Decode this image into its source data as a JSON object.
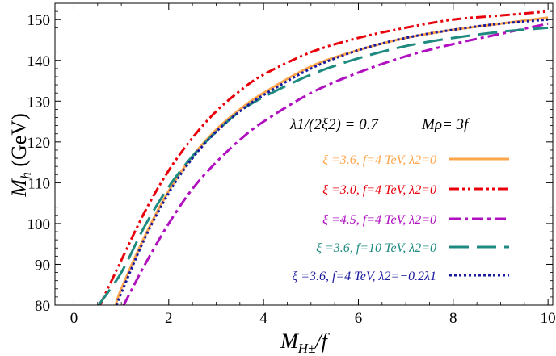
{
  "chart_data": {
    "type": "line",
    "title": "",
    "xlabel": {
      "main": "M",
      "sub": "H±",
      "tail": "/f"
    },
    "ylabel": {
      "main": "M",
      "sub": "h",
      "tail": " (GeV)"
    },
    "xlim": [
      -0.4,
      10.1
    ],
    "ylim": [
      80,
      154
    ],
    "xticks": [
      0,
      2,
      4,
      6,
      8,
      10
    ],
    "xtick_labels": [
      "0",
      "2",
      "4",
      "6",
      "8",
      "10"
    ],
    "yticks": [
      80,
      90,
      100,
      110,
      120,
      130,
      140,
      150
    ],
    "ytick_labels": [
      "80",
      "90",
      "100",
      "110",
      "120",
      "130",
      "140",
      "150"
    ],
    "grid": false,
    "annotations": {
      "ratio": "λ1/(2ξ2) = 0.7",
      "mrho": "Mρ= 3f"
    },
    "series": [
      {
        "name": "ξ =3.6, f=4 TeV, λ2=0",
        "color": "#ffa64d",
        "dash": "solid",
        "x": [
          0.88,
          1.0,
          1.5,
          2.0,
          2.5,
          3.0,
          3.5,
          4.0,
          5.0,
          6.0,
          7.0,
          8.0,
          9.0,
          10.0
        ],
        "y": [
          80,
          84,
          97,
          108,
          116.5,
          123,
          128,
          132,
          138.5,
          142.5,
          145.5,
          147.5,
          149,
          150.5
        ]
      },
      {
        "name": "ξ =3.0, f=4 TeV, λ2=0",
        "color": "#e8000b",
        "dash": "dashdotdot",
        "x": [
          0.55,
          1.0,
          1.5,
          2.0,
          2.5,
          3.0,
          3.5,
          4.0,
          5.0,
          6.0,
          7.0,
          8.0,
          9.0,
          10.0
        ],
        "y": [
          80,
          91,
          103,
          113,
          121,
          127.5,
          132.5,
          136.5,
          142,
          145.5,
          148,
          150,
          151,
          152
        ]
      },
      {
        "name": "ξ =4.5, f=4 TeV, λ2=0",
        "color": "#b010c0",
        "dash": "dashdot",
        "x": [
          1.05,
          1.5,
          2.0,
          2.5,
          3.0,
          3.5,
          4.0,
          5.0,
          6.0,
          7.0,
          8.0,
          9.0,
          10.0
        ],
        "y": [
          80,
          90,
          100,
          108.5,
          115,
          120.5,
          125,
          132,
          137,
          141,
          144,
          146.5,
          149
        ]
      },
      {
        "name": "ξ =3.6, f=10 TeV, λ2=0",
        "color": "#1f8a80",
        "dash": "longdash",
        "x": [
          0.52,
          1.0,
          1.5,
          2.0,
          2.5,
          3.0,
          3.5,
          4.0,
          5.0,
          6.0,
          7.0,
          8.0,
          9.0,
          10.0
        ],
        "y": [
          80,
          88,
          99.5,
          109,
          116.5,
          122.5,
          127.5,
          131,
          136.5,
          140.5,
          143.5,
          145.5,
          147,
          148
        ]
      },
      {
        "name": "ξ =3.6, f=4 TeV, λ2=−0.2λ1",
        "color": "#1a1a9e",
        "dash": "dotted",
        "x": [
          0.9,
          1.0,
          1.5,
          2.0,
          2.5,
          3.0,
          3.5,
          4.0,
          5.0,
          6.0,
          7.0,
          8.0,
          9.0,
          10.0
        ],
        "y": [
          80,
          83,
          96.5,
          107.5,
          116,
          122.5,
          127.5,
          131.5,
          138,
          142.5,
          145.5,
          147.5,
          149,
          150
        ]
      }
    ]
  }
}
